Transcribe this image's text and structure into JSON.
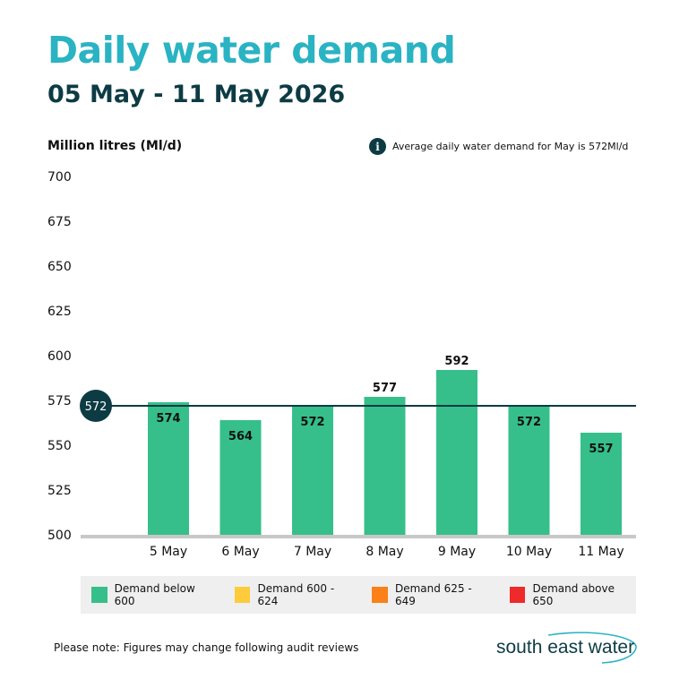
{
  "header": {
    "title": "Daily water demand",
    "subtitle": "05 May - 11 May 2026"
  },
  "note": {
    "icon": "info-icon",
    "icon_glyph": "i",
    "text": "Average daily water demand for May is 572Ml/d"
  },
  "chart_data": {
    "type": "bar",
    "title": "Daily water demand",
    "subtitle": "05 May - 11 May 2026",
    "ylabel": "Million litres (Ml/d)",
    "xlabel": "",
    "ylim": [
      500,
      700
    ],
    "yticks": [
      700,
      675,
      650,
      625,
      600,
      575,
      550,
      525,
      500
    ],
    "categories": [
      "5 May",
      "6 May",
      "7 May",
      "8 May",
      "9 May",
      "10 May",
      "11 May"
    ],
    "values": [
      574,
      564,
      572,
      577,
      592,
      572,
      557
    ],
    "average": {
      "value": 572,
      "label": "572"
    },
    "bar_color": "#36bf8a",
    "average_line_color": "#0d3b44",
    "grid": false
  },
  "legend": [
    {
      "label": "Demand below 600",
      "color": "#36bf8a"
    },
    {
      "label": "Demand 600 - 624",
      "color": "#fdcb3b"
    },
    {
      "label": "Demand 625 - 649",
      "color": "#fa8017"
    },
    {
      "label": "Demand above 650",
      "color": "#ee2a2a"
    }
  ],
  "footer": {
    "note": "Please note: Figures may change following audit reviews",
    "logo_text": "south east water"
  },
  "colors": {
    "title": "#2ab3c3",
    "subtitle": "#0d3b44",
    "axis": "#c8c8c8",
    "legend_bg": "#efefef"
  }
}
